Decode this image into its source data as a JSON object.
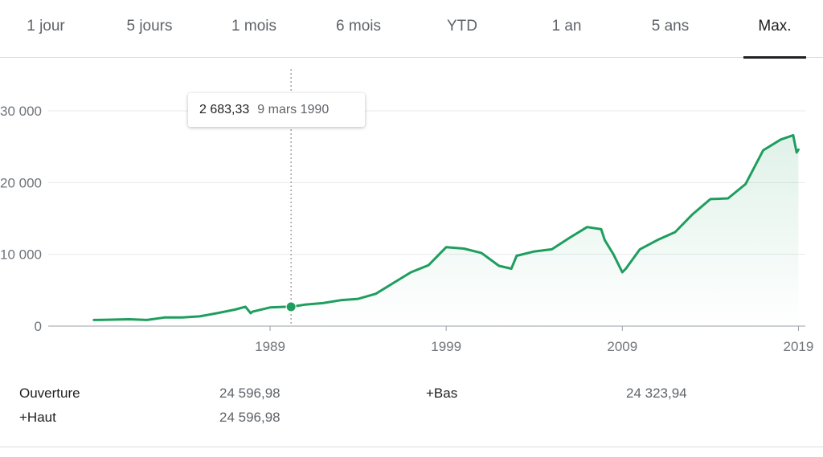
{
  "tabs": [
    {
      "label": "1 jour"
    },
    {
      "label": "5 jours"
    },
    {
      "label": "1 mois"
    },
    {
      "label": "6 mois"
    },
    {
      "label": "YTD"
    },
    {
      "label": "1 an"
    },
    {
      "label": "5 ans"
    },
    {
      "label": "Max.",
      "active": true
    }
  ],
  "tooltip": {
    "value": "2 683,33",
    "date": "9 mars 1990"
  },
  "stats": {
    "open_label": "Ouverture",
    "open_value": "24 596,98",
    "high_label": "+Haut",
    "high_value": "24 596,98",
    "low_label": "+Bas",
    "low_value": "24 323,94"
  },
  "colors": {
    "line": "#1e9e5e",
    "grid": "#e8eaed",
    "axis": "#9aa0a6",
    "tick_text": "#70757a"
  },
  "chart_data": {
    "type": "line",
    "title": "",
    "xlabel": "",
    "ylabel": "",
    "ylim": [
      0,
      30000
    ],
    "yticks": [
      0,
      10000,
      20000,
      30000
    ],
    "ytick_labels": [
      "0",
      "10 000",
      "20 000",
      "30 000"
    ],
    "xticks": [
      1989,
      1999,
      2009,
      2019
    ],
    "xtick_labels": [
      "1989",
      "1999",
      "2009",
      "2019"
    ],
    "xlim": [
      1978,
      2019.3
    ],
    "grid": true,
    "highlight": {
      "x": 1990.19,
      "y": 2683.33
    },
    "series": [
      {
        "x": [
          1979,
          1980,
          1981,
          1982,
          1983,
          1984,
          1985,
          1986,
          1987,
          1987.6,
          1987.9,
          1988,
          1989,
          1990,
          1990.19,
          1991,
          1992,
          1993,
          1994,
          1995,
          1996,
          1997,
          1998,
          1999,
          2000,
          2001,
          2002,
          2002.7,
          2003,
          2004,
          2005,
          2006,
          2007,
          2007.8,
          2008,
          2008.5,
          2009,
          2009.2,
          2010,
          2011,
          2012,
          2013,
          2014,
          2015,
          2016,
          2017,
          2018,
          2018.7,
          2018.9,
          2019
        ],
        "y": [
          850,
          900,
          950,
          850,
          1200,
          1200,
          1350,
          1800,
          2300,
          2700,
          1800,
          2000,
          2600,
          2700,
          2683,
          3000,
          3200,
          3600,
          3800,
          4500,
          6000,
          7500,
          8500,
          11000,
          10800,
          10200,
          8400,
          8000,
          9800,
          10400,
          10700,
          12300,
          13800,
          13500,
          12000,
          10000,
          7500,
          8000,
          10700,
          12000,
          13100,
          15600,
          17700,
          17800,
          19800,
          24500,
          26000,
          26600,
          24200,
          24597
        ]
      }
    ]
  }
}
